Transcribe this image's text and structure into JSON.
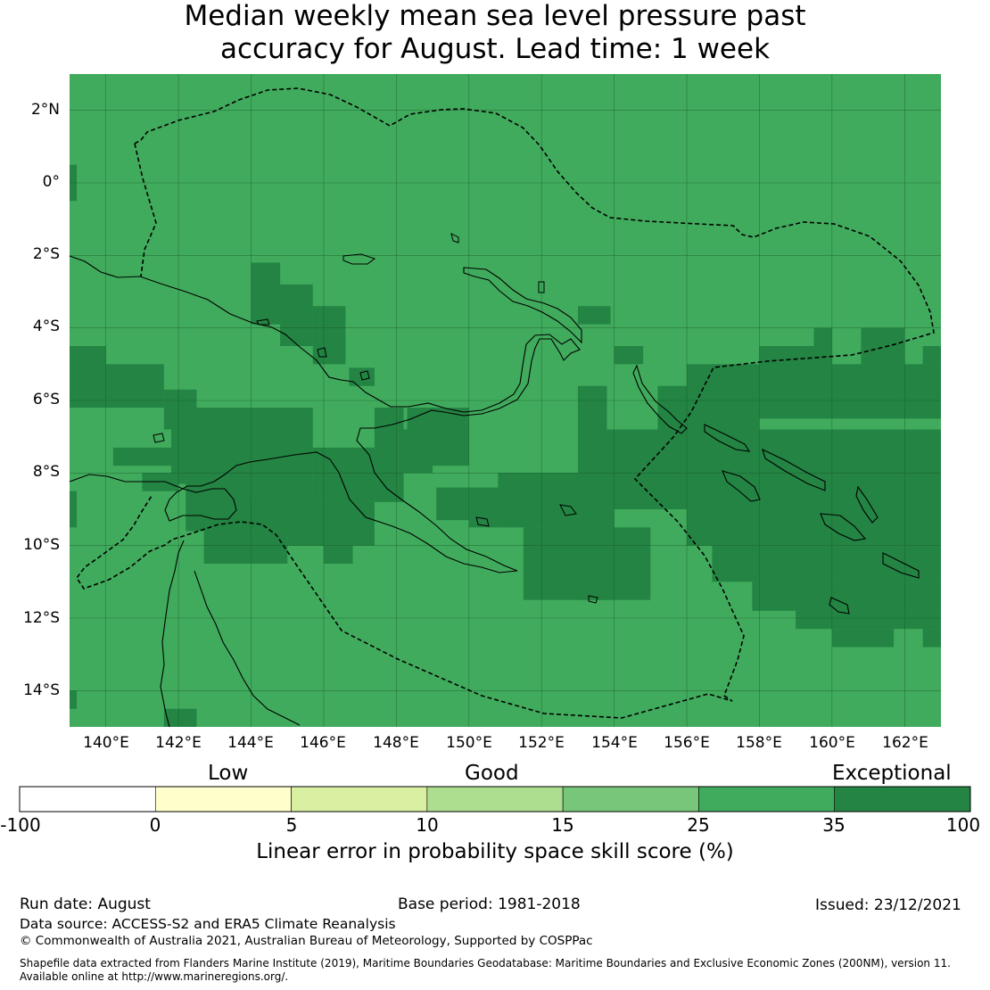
{
  "title": {
    "line1": "Median weekly mean sea level pressure past",
    "line2": "accuracy for August. Lead time: 1 week"
  },
  "map": {
    "lat_labels": [
      "2°N",
      "0°",
      "2°S",
      "4°S",
      "6°S",
      "8°S",
      "10°S",
      "12°S",
      "14°S"
    ],
    "lon_labels": [
      "140°E",
      "142°E",
      "144°E",
      "146°E",
      "148°E",
      "150°E",
      "152°E",
      "154°E",
      "156°E",
      "158°E",
      "160°E",
      "162°E"
    ],
    "extent": {
      "lon_min": 139.0,
      "lon_max": 163.0,
      "lat_min": -15.0,
      "lat_max": 3.0
    },
    "base_category": "25-35",
    "exceptional_cells": [
      [
        139.0,
        0.5,
        139.2,
        -0.5
      ],
      [
        139.0,
        -4.5,
        140.0,
        -6.2
      ],
      [
        140.0,
        -5.0,
        141.6,
        -6.2
      ],
      [
        141.6,
        -5.7,
        142.5,
        -6.8
      ],
      [
        141.8,
        -6.2,
        144.0,
        -8.3
      ],
      [
        140.2,
        -7.3,
        141.8,
        -7.8
      ],
      [
        141.0,
        -8.0,
        142.0,
        -8.5
      ],
      [
        142.2,
        -8.0,
        144.0,
        -9.6
      ],
      [
        142.7,
        -9.0,
        144.0,
        -10.5
      ],
      [
        144.0,
        -6.2,
        145.7,
        -9.0
      ],
      [
        144.0,
        -2.2,
        144.8,
        -3.9
      ],
      [
        144.8,
        -2.8,
        145.7,
        -4.5
      ],
      [
        145.7,
        -3.4,
        146.6,
        -5.0
      ],
      [
        145.7,
        -7.3,
        147.4,
        -8.8
      ],
      [
        144.0,
        -8.8,
        145.0,
        -9.6
      ],
      [
        144.0,
        -9.0,
        145.0,
        -10.5
      ],
      [
        145.0,
        -8.8,
        147.4,
        -10.0
      ],
      [
        146.0,
        -10.0,
        146.8,
        -10.5
      ],
      [
        146.7,
        -5.1,
        147.4,
        -5.6
      ],
      [
        147.4,
        -6.2,
        148.2,
        -8.8
      ],
      [
        148.2,
        -6.8,
        149.0,
        -8.0
      ],
      [
        148.3,
        -6.2,
        150.0,
        -7.8
      ],
      [
        149.1,
        -8.4,
        150.0,
        -9.3
      ],
      [
        150.0,
        -8.4,
        150.8,
        -9.5
      ],
      [
        150.8,
        -8.0,
        154.0,
        -9.5
      ],
      [
        151.5,
        -9.5,
        155.0,
        -11.5
      ],
      [
        153.0,
        -9.5,
        154.0,
        -11.5
      ],
      [
        153.4,
        -10.5,
        154.2,
        -11.0
      ],
      [
        153.0,
        -5.6,
        153.8,
        -8.8
      ],
      [
        153.8,
        -6.8,
        156.0,
        -9.0
      ],
      [
        155.2,
        -5.6,
        158.0,
        -6.8
      ],
      [
        156.0,
        -6.8,
        163.0,
        -10.0
      ],
      [
        156.0,
        -5.0,
        158.0,
        -6.0
      ],
      [
        158.0,
        -4.5,
        160.0,
        -5.5
      ],
      [
        159.5,
        -4.0,
        160.0,
        -4.5
      ],
      [
        160.8,
        -4.0,
        162.0,
        -5.0
      ],
      [
        162.5,
        -4.5,
        163.0,
        -5.0
      ],
      [
        158.0,
        -5.0,
        163.0,
        -6.5
      ],
      [
        156.7,
        -10.0,
        163.0,
        -11.0
      ],
      [
        157.8,
        -11.0,
        163.0,
        -11.8
      ],
      [
        159.0,
        -11.8,
        163.0,
        -12.3
      ],
      [
        160.0,
        -12.3,
        161.7,
        -12.8
      ],
      [
        162.5,
        -12.3,
        163.0,
        -12.8
      ],
      [
        153.0,
        -3.4,
        153.9,
        -3.9
      ],
      [
        154.0,
        -4.5,
        154.8,
        -5.0
      ],
      [
        141.6,
        -14.5,
        142.5,
        -15.0
      ],
      [
        139.0,
        -14.0,
        139.2,
        -14.5
      ],
      [
        139.0,
        -8.5,
        139.2,
        -9.5
      ]
    ],
    "gridlines": true
  },
  "colorbar": {
    "categories": [
      {
        "label": "Low",
        "color": "#ffffff"
      },
      {
        "label": "Good",
        "color": "#ffffcc"
      },
      {
        "label": "Exceptional",
        "color": "#22843e"
      }
    ],
    "bins": [
      {
        "from": "-100",
        "to": "0",
        "color": "#ffffff"
      },
      {
        "from": "0",
        "to": "5",
        "color": "#ffffcc"
      },
      {
        "from": "5",
        "to": "10",
        "color": "#d9f0a3"
      },
      {
        "from": "10",
        "to": "15",
        "color": "#addd8e"
      },
      {
        "from": "15",
        "to": "25",
        "color": "#78c679"
      },
      {
        "from": "25",
        "to": "35",
        "color": "#41ab5d"
      },
      {
        "from": "35",
        "to": "100",
        "color": "#238443"
      }
    ],
    "tick_labels": [
      "-100",
      "0",
      "5",
      "10",
      "15",
      "25",
      "35",
      "100"
    ],
    "title": "Linear error in probability space skill score (%)"
  },
  "footer": {
    "run_date": "Run date: August",
    "base_period": "Base period: 1981-2018",
    "issued": "Issued: 23/12/2021",
    "data_source": "Data source: ACCESS-S2 and ERA5 Climate Reanalysis",
    "copyright": "© Commonwealth of Australia 2021, Australian Bureau of Meteorology, Supported by COSPPac",
    "shapefile_line1": "Shapefile data extracted from Flanders Marine Institute (2019), Maritime Boundaries Geodatabase: Maritime Boundaries and Exclusive Economic Zones (200NM), version 11.",
    "shapefile_line2": "Available online at http://www.marineregions.org/."
  }
}
